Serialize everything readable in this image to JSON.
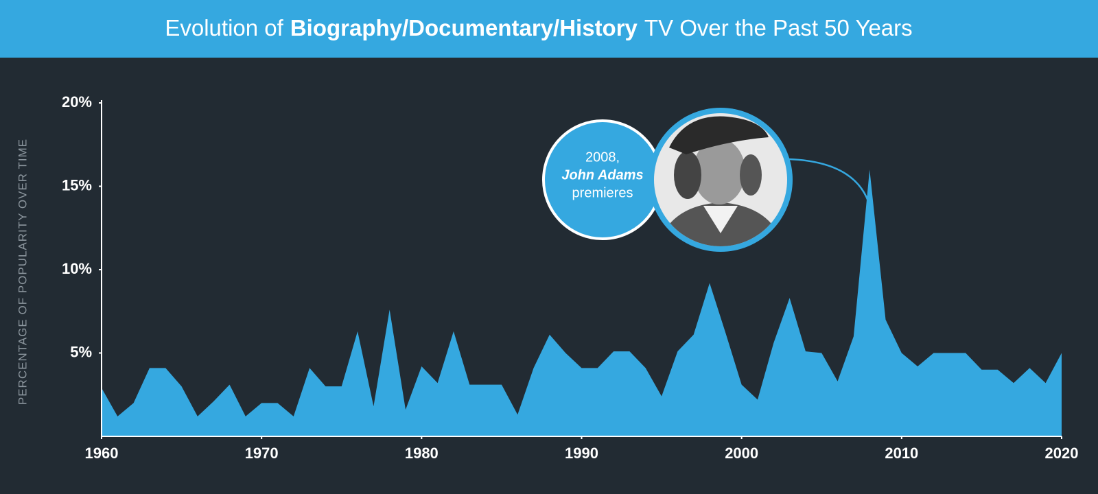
{
  "chart_data": {
    "type": "area",
    "title_parts": [
      "Evolution of",
      "Biography/Documentary/History",
      "TV Over the Past 50 Years"
    ],
    "y_label": "PERCENTAGE OF POPULARITY OVER TIME",
    "color": "#35a8e0",
    "x": [
      1960,
      1961,
      1962,
      1963,
      1964,
      1965,
      1966,
      1967,
      1968,
      1969,
      1970,
      1971,
      1972,
      1973,
      1974,
      1975,
      1976,
      1977,
      1978,
      1979,
      1980,
      1981,
      1982,
      1983,
      1984,
      1985,
      1986,
      1987,
      1988,
      1989,
      1990,
      1991,
      1992,
      1993,
      1994,
      1995,
      1996,
      1997,
      1998,
      1999,
      2000,
      2001,
      2002,
      2003,
      2004,
      2005,
      2006,
      2007,
      2008,
      2009,
      2010,
      2011,
      2012,
      2013,
      2014,
      2015,
      2016,
      2017,
      2018,
      2019,
      2020
    ],
    "values": [
      2.9,
      1.2,
      2.0,
      4.1,
      4.1,
      3.0,
      1.2,
      2.1,
      3.1,
      1.2,
      2.0,
      2.0,
      1.2,
      4.1,
      3.0,
      3.0,
      6.3,
      1.8,
      7.6,
      1.6,
      4.2,
      3.2,
      6.3,
      3.1,
      3.1,
      3.1,
      1.3,
      4.1,
      6.1,
      5.0,
      4.1,
      4.1,
      5.1,
      5.1,
      4.1,
      2.4,
      5.1,
      6.1,
      9.2,
      6.2,
      3.1,
      2.2,
      5.6,
      8.3,
      5.1,
      5.0,
      3.3,
      6.0,
      16.0,
      7.0,
      5.0,
      4.2,
      5.0,
      5.0,
      5.0,
      4.0,
      4.0,
      3.2,
      4.1,
      3.2,
      5.0
    ],
    "xlim": [
      1960,
      2020
    ],
    "xticks": [
      1960,
      1970,
      1980,
      1990,
      2000,
      2010,
      2020
    ],
    "ylim": [
      0,
      20
    ],
    "yticks": [
      {
        "value": 5,
        "label": "5%"
      },
      {
        "value": 10,
        "label": "10%"
      },
      {
        "value": 15,
        "label": "15%"
      },
      {
        "value": 20,
        "label": "20%"
      }
    ],
    "grid": false,
    "annotation": {
      "year_text": "2008,",
      "show": "John Adams",
      "event": "premieres"
    }
  }
}
